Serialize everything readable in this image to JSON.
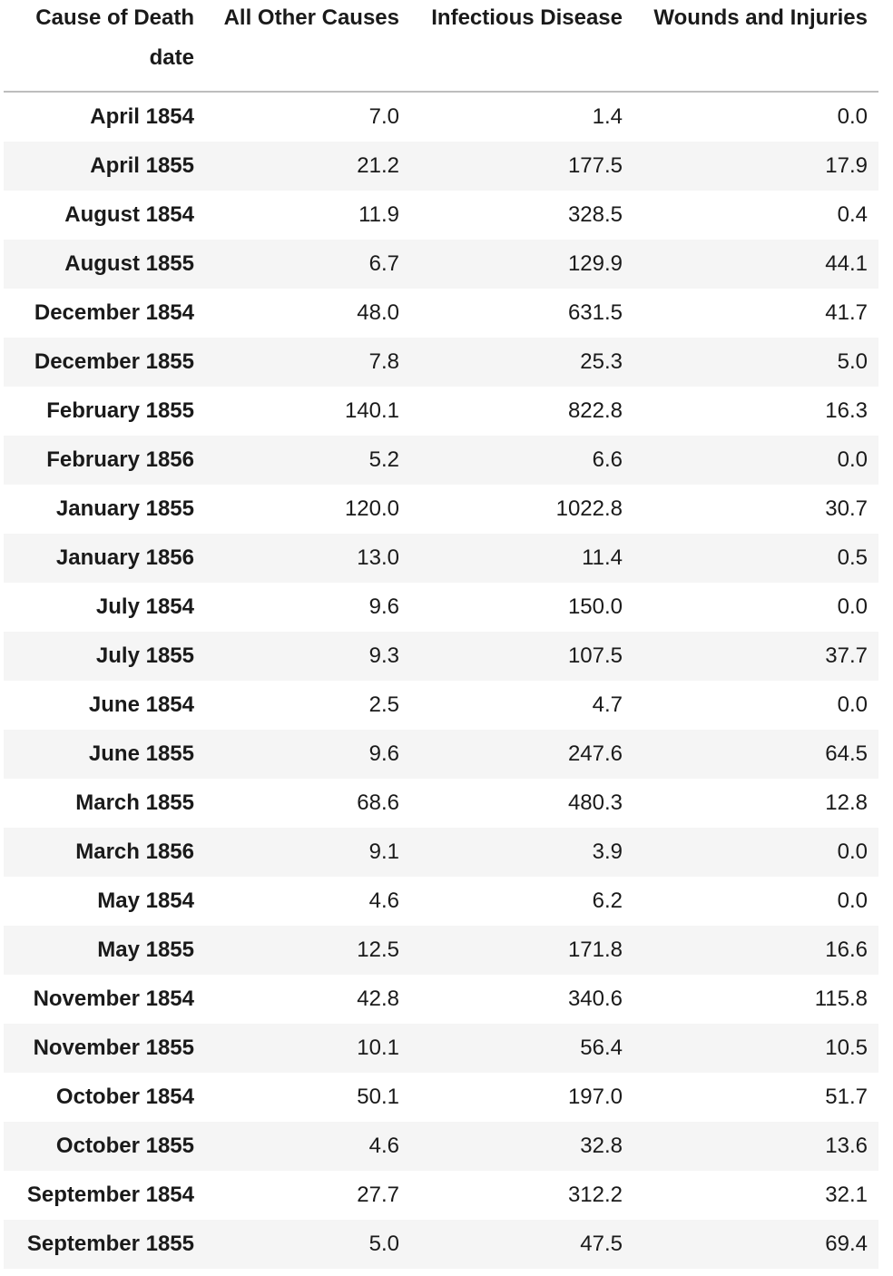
{
  "table": {
    "columns_name": "Cause of Death",
    "index_name": "date",
    "columns": [
      "All Other Causes",
      "Infectious Disease",
      "Wounds and Injuries"
    ],
    "rows": [
      {
        "date": "April 1854",
        "values": [
          "7.0",
          "1.4",
          "0.0"
        ]
      },
      {
        "date": "April 1855",
        "values": [
          "21.2",
          "177.5",
          "17.9"
        ]
      },
      {
        "date": "August 1854",
        "values": [
          "11.9",
          "328.5",
          "0.4"
        ]
      },
      {
        "date": "August 1855",
        "values": [
          "6.7",
          "129.9",
          "44.1"
        ]
      },
      {
        "date": "December 1854",
        "values": [
          "48.0",
          "631.5",
          "41.7"
        ]
      },
      {
        "date": "December 1855",
        "values": [
          "7.8",
          "25.3",
          "5.0"
        ]
      },
      {
        "date": "February 1855",
        "values": [
          "140.1",
          "822.8",
          "16.3"
        ]
      },
      {
        "date": "February 1856",
        "values": [
          "5.2",
          "6.6",
          "0.0"
        ]
      },
      {
        "date": "January 1855",
        "values": [
          "120.0",
          "1022.8",
          "30.7"
        ]
      },
      {
        "date": "January 1856",
        "values": [
          "13.0",
          "11.4",
          "0.5"
        ]
      },
      {
        "date": "July 1854",
        "values": [
          "9.6",
          "150.0",
          "0.0"
        ]
      },
      {
        "date": "July 1855",
        "values": [
          "9.3",
          "107.5",
          "37.7"
        ]
      },
      {
        "date": "June 1854",
        "values": [
          "2.5",
          "4.7",
          "0.0"
        ]
      },
      {
        "date": "June 1855",
        "values": [
          "9.6",
          "247.6",
          "64.5"
        ]
      },
      {
        "date": "March 1855",
        "values": [
          "68.6",
          "480.3",
          "12.8"
        ]
      },
      {
        "date": "March 1856",
        "values": [
          "9.1",
          "3.9",
          "0.0"
        ]
      },
      {
        "date": "May 1854",
        "values": [
          "4.6",
          "6.2",
          "0.0"
        ]
      },
      {
        "date": "May 1855",
        "values": [
          "12.5",
          "171.8",
          "16.6"
        ]
      },
      {
        "date": "November 1854",
        "values": [
          "42.8",
          "340.6",
          "115.8"
        ]
      },
      {
        "date": "November 1855",
        "values": [
          "10.1",
          "56.4",
          "10.5"
        ]
      },
      {
        "date": "October 1854",
        "values": [
          "50.1",
          "197.0",
          "51.7"
        ]
      },
      {
        "date": "October 1855",
        "values": [
          "4.6",
          "32.8",
          "13.6"
        ]
      },
      {
        "date": "September 1854",
        "values": [
          "27.7",
          "312.2",
          "32.1"
        ]
      },
      {
        "date": "September 1855",
        "values": [
          "5.0",
          "47.5",
          "69.4"
        ]
      }
    ]
  }
}
